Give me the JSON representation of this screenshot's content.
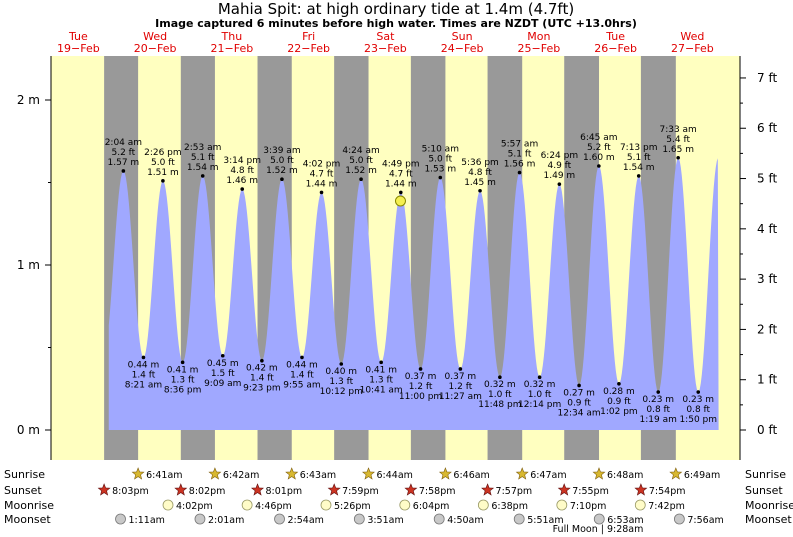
{
  "title": "Mahia Spit: at high  ordinary tide at 1.4m (4.7ft)",
  "subtitle": "Image captured 6 minutes before high water. Times are NZDT (UTC +13.0hrs)",
  "days": [
    {
      "dow": "Tue",
      "date": "19−Feb"
    },
    {
      "dow": "Wed",
      "date": "20−Feb"
    },
    {
      "dow": "Thu",
      "date": "21−Feb"
    },
    {
      "dow": "Fri",
      "date": "22−Feb"
    },
    {
      "dow": "Sat",
      "date": "23−Feb"
    },
    {
      "dow": "Sun",
      "date": "24−Feb"
    },
    {
      "dow": "Mon",
      "date": "25−Feb"
    },
    {
      "dow": "Tue",
      "date": "26−Feb"
    },
    {
      "dow": "Wed",
      "date": "27−Feb"
    }
  ],
  "colors": {
    "day": "#ffffc0",
    "night": "#999999",
    "water": "#a0a8ff",
    "daylabel": "#e00000",
    "star": "#cc3322",
    "sunstar": "#d8b830"
  },
  "chart_data": {
    "type": "area",
    "ylabel_left": "m",
    "ylabel_right": "ft",
    "ylim": [
      -0.2,
      2.25
    ],
    "y_ticks_m": [
      "0 m",
      "1 m",
      "2 m"
    ],
    "y_ticks_ft": [
      "0 ft",
      "1 ft",
      "2 ft",
      "3 ft",
      "4 ft",
      "5 ft",
      "6 ft",
      "7 ft"
    ],
    "current_level_m": 1.4,
    "tides": [
      {
        "type": "high",
        "time": "2:04 am",
        "ft": "5.2 ft",
        "m": "1.57 m",
        "h": 1.57,
        "day": 1,
        "hour": 2.07
      },
      {
        "type": "low",
        "time": "8:21 am",
        "ft": "1.4 ft",
        "m": "0.44 m",
        "h": 0.44,
        "day": 1,
        "hour": 8.35
      },
      {
        "type": "high",
        "time": "2:26 pm",
        "ft": "5.0 ft",
        "m": "1.51 m",
        "h": 1.51,
        "day": 1,
        "hour": 14.43
      },
      {
        "type": "low",
        "time": "8:36 pm",
        "ft": "1.3 ft",
        "m": "0.41 m",
        "h": 0.41,
        "day": 1,
        "hour": 20.6
      },
      {
        "type": "high",
        "time": "2:53 am",
        "ft": "5.1 ft",
        "m": "1.54 m",
        "h": 1.54,
        "day": 2,
        "hour": 2.88
      },
      {
        "type": "low",
        "time": "9:09 am",
        "ft": "1.5 ft",
        "m": "0.45 m",
        "h": 0.45,
        "day": 2,
        "hour": 9.15
      },
      {
        "type": "high",
        "time": "3:14 pm",
        "ft": "4.8 ft",
        "m": "1.46 m",
        "h": 1.46,
        "day": 2,
        "hour": 15.23
      },
      {
        "type": "low",
        "time": "9:23 pm",
        "ft": "1.4 ft",
        "m": "0.42 m",
        "h": 0.42,
        "day": 2,
        "hour": 21.38
      },
      {
        "type": "high",
        "time": "3:39 am",
        "ft": "5.0 ft",
        "m": "1.52 m",
        "h": 1.52,
        "day": 3,
        "hour": 3.65
      },
      {
        "type": "low",
        "time": "9:55 am",
        "ft": "1.4 ft",
        "m": "0.44 m",
        "h": 0.44,
        "day": 3,
        "hour": 9.92
      },
      {
        "type": "high",
        "time": "4:02 pm",
        "ft": "4.7 ft",
        "m": "1.44 m",
        "h": 1.44,
        "day": 3,
        "hour": 16.03
      },
      {
        "type": "low",
        "time": "10:12 pm",
        "ft": "1.3 ft",
        "m": "0.40 m",
        "h": 0.4,
        "day": 3,
        "hour": 22.2
      },
      {
        "type": "high",
        "time": "4:24 am",
        "ft": "5.0 ft",
        "m": "1.52 m",
        "h": 1.52,
        "day": 4,
        "hour": 4.4
      },
      {
        "type": "low",
        "time": "10:41 am",
        "ft": "1.3 ft",
        "m": "0.41 m",
        "h": 0.41,
        "day": 4,
        "hour": 10.68
      },
      {
        "type": "high",
        "time": "4:49 pm",
        "ft": "4.7 ft",
        "m": "1.44 m",
        "h": 1.44,
        "day": 4,
        "hour": 16.82
      },
      {
        "type": "low",
        "time": "11:00 pm",
        "ft": "1.2 ft",
        "m": "0.37 m",
        "h": 0.37,
        "day": 4,
        "hour": 23.0
      },
      {
        "type": "high",
        "time": "5:10 am",
        "ft": "5.0 ft",
        "m": "1.53 m",
        "h": 1.53,
        "day": 5,
        "hour": 5.17
      },
      {
        "type": "low",
        "time": "11:27 am",
        "ft": "1.2 ft",
        "m": "0.37 m",
        "h": 0.37,
        "day": 5,
        "hour": 11.45
      },
      {
        "type": "high",
        "time": "5:36 pm",
        "ft": "4.8 ft",
        "m": "1.45 m",
        "h": 1.45,
        "day": 5,
        "hour": 17.6
      },
      {
        "type": "low",
        "time": "11:48 pm",
        "ft": "1.0 ft",
        "m": "0.32 m",
        "h": 0.32,
        "day": 5,
        "hour": 23.8
      },
      {
        "type": "high",
        "time": "5:57 am",
        "ft": "5.1 ft",
        "m": "1.56 m",
        "h": 1.56,
        "day": 6,
        "hour": 5.95
      },
      {
        "type": "low",
        "time": "12:14 pm",
        "ft": "1.0 ft",
        "m": "0.32 m",
        "h": 0.32,
        "day": 6,
        "hour": 12.23
      },
      {
        "type": "high",
        "time": "6:24 pm",
        "ft": "4.9 ft",
        "m": "1.49 m",
        "h": 1.49,
        "day": 6,
        "hour": 18.4
      },
      {
        "type": "low",
        "time": "12:34 am",
        "ft": "0.9 ft",
        "m": "0.27 m",
        "h": 0.27,
        "day": 7,
        "hour": 0.57
      },
      {
        "type": "high",
        "time": "6:45 am",
        "ft": "5.2 ft",
        "m": "1.60 m",
        "h": 1.6,
        "day": 7,
        "hour": 6.75
      },
      {
        "type": "low",
        "time": "1:02 pm",
        "ft": "0.9 ft",
        "m": "0.28 m",
        "h": 0.28,
        "day": 7,
        "hour": 13.03
      },
      {
        "type": "high",
        "time": "7:13 pm",
        "ft": "5.1 ft",
        "m": "1.54 m",
        "h": 1.54,
        "day": 7,
        "hour": 19.22
      },
      {
        "type": "low",
        "time": "1:19 am",
        "ft": "0.8 ft",
        "m": "0.23 m",
        "h": 0.23,
        "day": 8,
        "hour": 1.32
      },
      {
        "type": "high",
        "time": "7:33 am",
        "ft": "5.4 ft",
        "m": "1.65 m",
        "h": 1.65,
        "day": 8,
        "hour": 7.55
      },
      {
        "type": "low",
        "time": "1:50 pm",
        "ft": "0.8 ft",
        "m": "0.23 m",
        "h": 0.23,
        "day": 8,
        "hour": 13.83
      }
    ]
  },
  "rows": {
    "sunrise": "Sunrise",
    "sunset": "Sunset",
    "moonrise": "Moonrise",
    "moonset": "Moonset"
  },
  "sunrise": [
    {
      "time": "6:41am",
      "day": 1,
      "hour": 6.68
    },
    {
      "time": "6:42am",
      "day": 2,
      "hour": 6.7
    },
    {
      "time": "6:43am",
      "day": 3,
      "hour": 6.72
    },
    {
      "time": "6:44am",
      "day": 4,
      "hour": 6.73
    },
    {
      "time": "6:46am",
      "day": 5,
      "hour": 6.77
    },
    {
      "time": "6:47am",
      "day": 6,
      "hour": 6.78
    },
    {
      "time": "6:48am",
      "day": 7,
      "hour": 6.8
    },
    {
      "time": "6:49am",
      "day": 8,
      "hour": 6.82
    }
  ],
  "sunset": [
    {
      "time": "8:03pm",
      "day": 0,
      "hour": 20.05
    },
    {
      "time": "8:02pm",
      "day": 1,
      "hour": 20.03
    },
    {
      "time": "8:01pm",
      "day": 2,
      "hour": 20.02
    },
    {
      "time": "7:59pm",
      "day": 3,
      "hour": 19.98
    },
    {
      "time": "7:58pm",
      "day": 4,
      "hour": 19.97
    },
    {
      "time": "7:57pm",
      "day": 5,
      "hour": 19.95
    },
    {
      "time": "7:55pm",
      "day": 6,
      "hour": 19.92
    },
    {
      "time": "7:54pm",
      "day": 7,
      "hour": 19.9
    }
  ],
  "moonrise": [
    {
      "time": "4:02pm",
      "day": 1,
      "hour": 16.03
    },
    {
      "time": "4:46pm",
      "day": 2,
      "hour": 16.77
    },
    {
      "time": "5:26pm",
      "day": 3,
      "hour": 17.43
    },
    {
      "time": "6:04pm",
      "day": 4,
      "hour": 18.07
    },
    {
      "time": "6:38pm",
      "day": 5,
      "hour": 18.63
    },
    {
      "time": "7:10pm",
      "day": 6,
      "hour": 19.17
    },
    {
      "time": "7:42pm",
      "day": 7,
      "hour": 19.7
    }
  ],
  "moonset": [
    {
      "time": "1:11am",
      "day": 1,
      "hour": 1.18
    },
    {
      "time": "2:01am",
      "day": 2,
      "hour": 2.02
    },
    {
      "time": "2:54am",
      "day": 3,
      "hour": 2.9
    },
    {
      "time": "3:51am",
      "day": 4,
      "hour": 3.85
    },
    {
      "time": "4:50am",
      "day": 5,
      "hour": 4.83
    },
    {
      "time": "5:51am",
      "day": 6,
      "hour": 5.85
    },
    {
      "time": "6:53am",
      "day": 7,
      "hour": 6.88
    },
    {
      "time": "7:56am",
      "day": 8,
      "hour": 7.93
    }
  ],
  "full_moon": "Full Moon | 9:28am"
}
